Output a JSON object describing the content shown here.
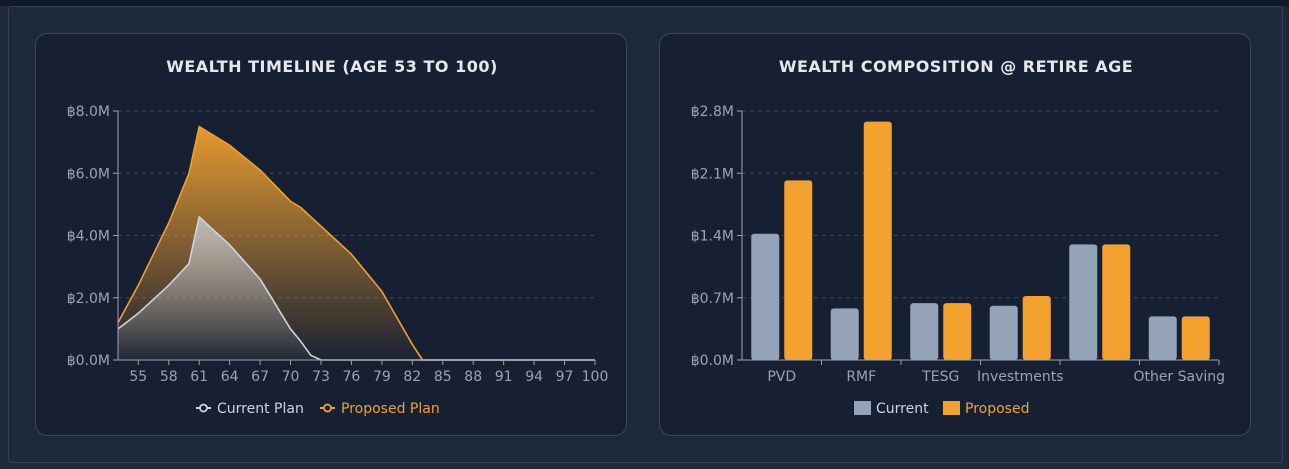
{
  "charts": [
    {
      "type": "area",
      "title": "WEALTH TIMELINE (AGE 53 TO 100)",
      "y_ticks": [
        "฿0.0M",
        "฿2.0M",
        "฿4.0M",
        "฿6.0M",
        "฿8.0M"
      ],
      "x_ticks": [
        "55",
        "58",
        "61",
        "64",
        "67",
        "70",
        "73",
        "76",
        "79",
        "82",
        "85",
        "88",
        "91",
        "94",
        "97",
        "100"
      ],
      "legend": [
        "Current Plan",
        "Proposed Plan"
      ]
    },
    {
      "type": "bar",
      "title": "WEALTH COMPOSITION @ RETIRE AGE",
      "y_ticks": [
        "฿0.0M",
        "฿0.7M",
        "฿1.4M",
        "฿2.1M",
        "฿2.8M"
      ],
      "x_ticks": [
        "PVD",
        "RMF",
        "TESG",
        "Investments",
        "",
        "Other Saving"
      ],
      "legend": [
        "Current",
        "Proposed"
      ]
    }
  ],
  "chart_data": [
    {
      "type": "area",
      "x": [
        53,
        55,
        58,
        60,
        61,
        62,
        64,
        67,
        70,
        71,
        72,
        73,
        74,
        76,
        79,
        82,
        83,
        85,
        88,
        91,
        94,
        97,
        100
      ],
      "series": [
        {
          "name": "Current Plan",
          "values": [
            1.0,
            1.5,
            2.4,
            3.1,
            4.6,
            4.3,
            3.7,
            2.6,
            1.0,
            0.6,
            0.15,
            0,
            0,
            0,
            0,
            0,
            0,
            0,
            0,
            0,
            0,
            0,
            0
          ]
        },
        {
          "name": "Proposed Plan",
          "values": [
            1.2,
            2.4,
            4.4,
            6.0,
            7.5,
            7.3,
            6.9,
            6.1,
            5.1,
            4.9,
            4.6,
            4.3,
            4.0,
            3.4,
            2.2,
            0.5,
            0,
            0,
            0,
            0,
            0,
            0,
            0
          ]
        }
      ],
      "xlim": [
        53,
        100
      ],
      "ylim": [
        0,
        8
      ],
      "grid": true,
      "legend_position": "bottom",
      "colors": {
        "current": "#cbd5e1",
        "proposed": "#f0a030"
      }
    },
    {
      "type": "bar",
      "categories": [
        "PVD",
        "RMF",
        "TESG",
        "Investments",
        "",
        "Other Saving"
      ],
      "series": [
        {
          "name": "Current",
          "values": [
            1.42,
            0.58,
            0.64,
            0.61,
            1.3,
            0.49
          ]
        },
        {
          "name": "Proposed",
          "values": [
            2.02,
            2.68,
            0.64,
            0.72,
            1.3,
            0.49
          ]
        }
      ],
      "ylim": [
        0,
        2.8
      ],
      "grid": true,
      "legend_position": "bottom",
      "colors": {
        "current": "#94a3b8",
        "proposed": "#f3a230"
      }
    }
  ]
}
